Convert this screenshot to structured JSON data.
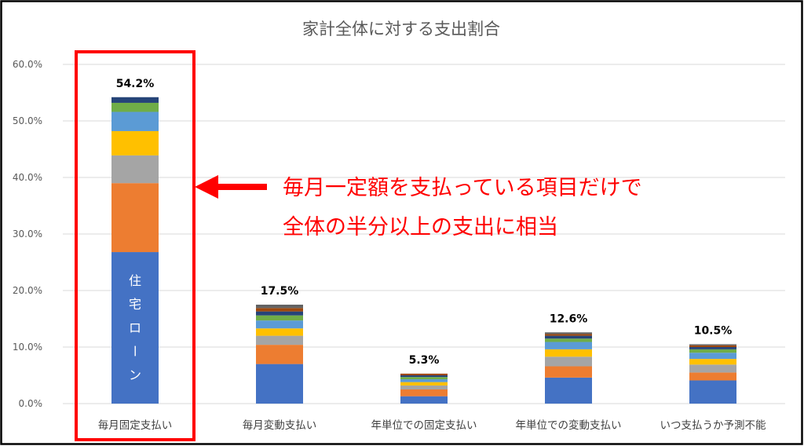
{
  "chart_data": {
    "type": "bar",
    "stacked": true,
    "title": "家計全体に対する支出割合",
    "xlabel": "",
    "ylabel": "",
    "ylim": [
      0,
      60
    ],
    "y_ticks": [
      "0.0%",
      "10.0%",
      "20.0%",
      "30.0%",
      "40.0%",
      "50.0%",
      "60.0%"
    ],
    "y_tick_values": [
      0,
      10,
      20,
      30,
      40,
      50,
      60
    ],
    "grid": true,
    "legend": "none",
    "categories": [
      "毎月固定支払い",
      "毎月変動支払い",
      "年単位での固定支払い",
      "年単位での変動支払い",
      "いつ支払うか予測不能"
    ],
    "totals": [
      54.2,
      17.5,
      5.3,
      12.6,
      10.5
    ],
    "total_labels": [
      "54.2%",
      "17.5%",
      "5.3%",
      "12.6%",
      "10.5%"
    ],
    "segment_colors": [
      "#4472c4",
      "#ed7d31",
      "#a5a5a5",
      "#ffc000",
      "#5b9bd5",
      "#70ad47",
      "#264478",
      "#9e480e",
      "#636363"
    ],
    "segments": [
      [
        26.8,
        12.2,
        4.9,
        4.3,
        3.4,
        1.6,
        1.0
      ],
      [
        7.0,
        3.4,
        1.6,
        1.3,
        1.4,
        0.9,
        0.7,
        0.6,
        0.6
      ],
      [
        1.3,
        1.2,
        0.7,
        0.6,
        0.5,
        0.4,
        0.3,
        0.3
      ],
      [
        4.6,
        2.0,
        1.7,
        1.3,
        1.3,
        0.6,
        0.5,
        0.3,
        0.3
      ],
      [
        4.1,
        1.4,
        1.4,
        1.0,
        1.1,
        0.6,
        0.4,
        0.3,
        0.2
      ]
    ],
    "inbar_label": "住宅ローン",
    "highlight_category": 0
  },
  "annotation": {
    "line1": "毎月一定額を支払っている項目だけで",
    "line2": "全体の半分以上の支出に相当",
    "color": "#ff0000"
  }
}
